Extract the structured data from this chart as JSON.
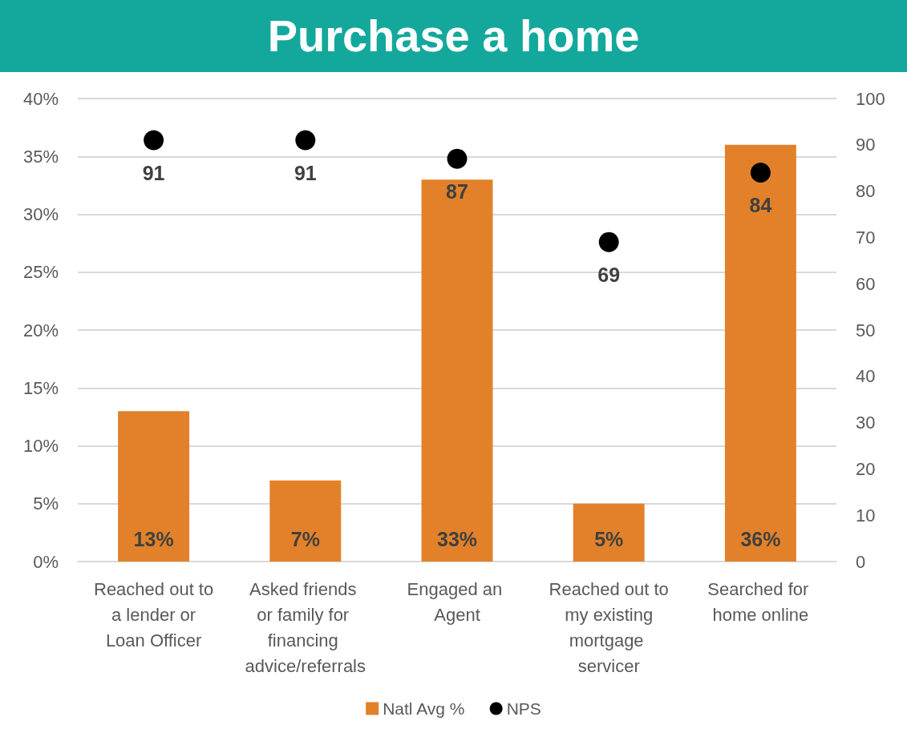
{
  "chart_data": {
    "type": "bar",
    "title": "Purchase a home",
    "categories": [
      "Reached out to a lender or Loan Officer",
      "Asked friends or family for financing advice/referrals",
      "Engaged an Agent",
      "Reached out to my existing mortgage servicer",
      "Searched for home online"
    ],
    "series": [
      {
        "name": "Natl Avg %",
        "color": "#e2812a",
        "values": [
          13,
          7,
          33,
          5,
          36
        ],
        "value_labels": [
          "13%",
          "7%",
          "33%",
          "5%",
          "36%"
        ]
      },
      {
        "name": "NPS",
        "type": "scatter",
        "axis": "y2",
        "color": "#000000",
        "values": [
          91,
          91,
          87,
          69,
          84
        ],
        "value_labels": [
          "91",
          "91",
          "87",
          "69",
          "84"
        ]
      }
    ],
    "ylim": [
      0,
      40
    ],
    "yticks": [
      {
        "value": 0,
        "label": "0%"
      },
      {
        "value": 5,
        "label": "5%"
      },
      {
        "value": 10,
        "label": "10%"
      },
      {
        "value": 15,
        "label": "15%"
      },
      {
        "value": 20,
        "label": "20%"
      },
      {
        "value": 25,
        "label": "25%"
      },
      {
        "value": 30,
        "label": "30%"
      },
      {
        "value": 35,
        "label": "35%"
      },
      {
        "value": 40,
        "label": "40%"
      }
    ],
    "y2lim": [
      0,
      100
    ],
    "y2ticks": [
      0,
      10,
      20,
      30,
      40,
      50,
      60,
      70,
      80,
      90,
      100
    ],
    "grid": "y",
    "legend": "bottom",
    "marker": "circle"
  }
}
